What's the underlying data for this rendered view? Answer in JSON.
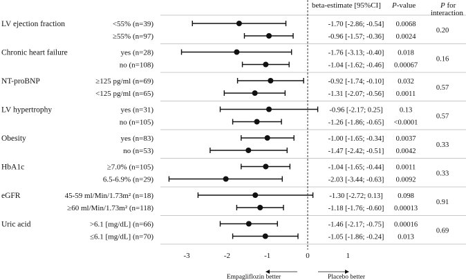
{
  "chart_data": {
    "type": "forest",
    "header": {
      "estimate": "beta-estimate [95%CI]",
      "pvalue_italic": "P",
      "pvalue_rest": "-value",
      "interaction_italic": "P",
      "interaction_rest": " for",
      "interaction_line2": "interaction"
    },
    "x_ticks": [
      -3,
      -2,
      -1,
      0,
      1
    ],
    "x_tick_labels": [
      "-3",
      "-2",
      "-1",
      "0",
      "1"
    ],
    "xlim": [
      -3.65,
      1.55
    ],
    "reference_line": 0,
    "footer": {
      "left_label": "Empagliflozin better",
      "right_label": "Placebo better"
    },
    "groups": [
      {
        "name": "LV ejection fraction",
        "p_interaction": "0.20",
        "rows": [
          {
            "label": "<55% (n=39)",
            "est": -1.7,
            "lo": -2.86,
            "hi": -0.54,
            "text": "-1.70 [-2.86; -0.54]",
            "p": "0.0068"
          },
          {
            "label": "≥55% (n=97)",
            "est": -0.96,
            "lo": -1.57,
            "hi": -0.36,
            "text": "-0.96 [-1.57; -0.36]",
            "p": "0.0024"
          }
        ]
      },
      {
        "name": "Chronic heart failure",
        "p_interaction": "0.16",
        "rows": [
          {
            "label": "yes (n=28)",
            "est": -1.76,
            "lo": -3.13,
            "hi": -0.4,
            "text": "-1.76 [-3.13; -0.40]",
            "p": "0.018"
          },
          {
            "label": "no (n=108)",
            "est": -1.04,
            "lo": -1.62,
            "hi": -0.46,
            "text": "-1.04 [-1.62; -0.46]",
            "p": "0.00067"
          }
        ]
      },
      {
        "name": "NT-proBNP",
        "p_interaction": "0.57",
        "rows": [
          {
            "label": "≥125 pg/ml (n=69)",
            "est": -0.92,
            "lo": -1.74,
            "hi": -0.1,
            "text": "-0.92 [-1.74; -0.10]",
            "p": "0.032"
          },
          {
            "label": "<125 pg/ml (n=65)",
            "est": -1.31,
            "lo": -2.07,
            "hi": -0.56,
            "text": "-1.31 [-2.07; -0.56]",
            "p": "0.0011"
          }
        ]
      },
      {
        "name": "LV hypertrophy",
        "p_interaction": "0.57",
        "rows": [
          {
            "label": "yes (n=31)",
            "est": -0.96,
            "lo": -2.17,
            "hi": 0.25,
            "text": "-0.96 [-2.17; 0.25]",
            "p": "0.13"
          },
          {
            "label": "no (n=105)",
            "est": -1.26,
            "lo": -1.86,
            "hi": -0.65,
            "text": "-1.26 [-1.86; -0.65]",
            "p": "<0.0001"
          }
        ]
      },
      {
        "name": "Obesity",
        "p_interaction": "0.33",
        "rows": [
          {
            "label": "yes (n=83)",
            "est": -1.0,
            "lo": -1.65,
            "hi": -0.34,
            "text": "-1.00 [-1.65; -0.34]",
            "p": "0.0037"
          },
          {
            "label": "no (n=53)",
            "est": -1.47,
            "lo": -2.42,
            "hi": -0.51,
            "text": "-1.47 [-2.42; -0.51]",
            "p": "0.0042"
          }
        ]
      },
      {
        "name": "HbA1c",
        "p_interaction": "0.33",
        "rows": [
          {
            "label": "≥7.0% (n=105)",
            "est": -1.04,
            "lo": -1.65,
            "hi": -0.44,
            "text": "-1.04 [-1.65; -0.44]",
            "p": "0.0011"
          },
          {
            "label": "6.5-6.9% (n=29)",
            "est": -2.03,
            "lo": -3.44,
            "hi": -0.63,
            "text": "-2.03 [-3.44; -0.63]",
            "p": "0.0092"
          }
        ]
      },
      {
        "name": "eGFR",
        "p_interaction": "0.91",
        "rows": [
          {
            "label": "45-59 ml/Min/1.73m² (n=18)",
            "est": -1.3,
            "lo": -2.72,
            "hi": 0.13,
            "text": "-1.30 [-2.72; 0.13]",
            "p": "0.098"
          },
          {
            "label": "≥60 ml/Min/1.73m² (n=118)",
            "est": -1.18,
            "lo": -1.76,
            "hi": -0.6,
            "text": "-1.18 [-1.76; -0.60]",
            "p": "0.00013"
          }
        ]
      },
      {
        "name": "Uric acid",
        "p_interaction": "0.69",
        "rows": [
          {
            "label": ">6.1 [mg/dL] (n=66)",
            "est": -1.46,
            "lo": -2.17,
            "hi": -0.75,
            "text": "-1.46 [-2.17; -0.75]",
            "p": "0.00016"
          },
          {
            "label": "≤6.1 [mg/dL] (n=70)",
            "est": -1.05,
            "lo": -1.86,
            "hi": -0.24,
            "text": "-1.05 [-1.86; -0.24]",
            "p": "0.013"
          }
        ]
      }
    ]
  }
}
